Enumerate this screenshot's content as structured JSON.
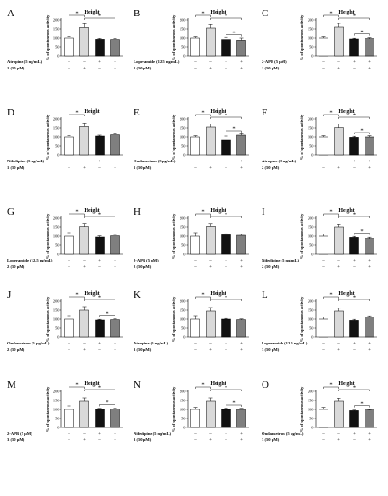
{
  "colors": {
    "bar_control": "#ffffff",
    "bar_compound": "#d9d9d9",
    "bar_antagonist": "#111111",
    "bar_combination": "#7f7f7f",
    "outline": "#000000"
  },
  "chart_data": [
    {
      "panel": "A",
      "type": "bar",
      "title": "Height",
      "ylabel": "% of spontaneous activity",
      "ylim": [
        0,
        200
      ],
      "yticks": [
        0,
        50,
        100,
        150,
        200
      ],
      "values": [
        100,
        158,
        93,
        92
      ],
      "errors": [
        7,
        20,
        5,
        6
      ],
      "rows": [
        {
          "label": "Atropine (5 ng/mL)",
          "marks": [
            "–",
            "–",
            "+",
            "+"
          ]
        },
        {
          "label": "1 (50 µM)",
          "marks": [
            "–",
            "+",
            "–",
            "+"
          ]
        }
      ],
      "annotations": [
        "*",
        "*"
      ]
    },
    {
      "panel": "B",
      "type": "bar",
      "title": "Height",
      "ylabel": "% of spontaneous activity",
      "ylim": [
        0,
        200
      ],
      "yticks": [
        0,
        50,
        100,
        150,
        200
      ],
      "values": [
        100,
        155,
        92,
        88
      ],
      "errors": [
        7,
        18,
        12,
        12
      ],
      "rows": [
        {
          "label": "Loperamide (12.5 ng/mL)",
          "marks": [
            "–",
            "–",
            "+",
            "+"
          ]
        },
        {
          "label": "1 (50 µM)",
          "marks": [
            "–",
            "+",
            "–",
            "+"
          ]
        }
      ],
      "annotations": [
        "*",
        "*",
        "*"
      ]
    },
    {
      "panel": "C",
      "type": "bar",
      "title": "Height",
      "ylabel": "% of spontaneous activity",
      "ylim": [
        0,
        200
      ],
      "yticks": [
        0,
        50,
        100,
        150,
        200
      ],
      "values": [
        100,
        160,
        95,
        97
      ],
      "errors": [
        7,
        20,
        4,
        5
      ],
      "rows": [
        {
          "label": "2-APB (5 µM)",
          "marks": [
            "–",
            "–",
            "+",
            "+"
          ]
        },
        {
          "label": "1 (50 µM)",
          "marks": [
            "–",
            "+",
            "–",
            "+"
          ]
        }
      ],
      "annotations": [
        "*",
        "*",
        "*"
      ]
    },
    {
      "panel": "D",
      "type": "bar",
      "title": "Height",
      "ylabel": "% of spontaneous activity",
      "ylim": [
        0,
        200
      ],
      "yticks": [
        0,
        50,
        100,
        150,
        200
      ],
      "values": [
        100,
        158,
        105,
        112
      ],
      "errors": [
        7,
        20,
        5,
        6
      ],
      "rows": [
        {
          "label": "Nifedipine (5 ng/mL)",
          "marks": [
            "–",
            "–",
            "+",
            "+"
          ]
        },
        {
          "label": "1 (50 µM)",
          "marks": [
            "–",
            "+",
            "–",
            "+"
          ]
        }
      ],
      "annotations": [
        "*"
      ]
    },
    {
      "panel": "E",
      "type": "bar",
      "title": "Height",
      "ylabel": "% of spontaneous activity",
      "ylim": [
        0,
        200
      ],
      "yticks": [
        0,
        50,
        100,
        150,
        200
      ],
      "values": [
        100,
        155,
        85,
        110
      ],
      "errors": [
        7,
        18,
        20,
        8
      ],
      "rows": [
        {
          "label": "Ondansetron (5 µg/mL)",
          "marks": [
            "–",
            "–",
            "+",
            "+"
          ]
        },
        {
          "label": "1 (50 µM)",
          "marks": [
            "–",
            "+",
            "–",
            "+"
          ]
        }
      ],
      "annotations": [
        "*",
        "*",
        "*"
      ]
    },
    {
      "panel": "F",
      "type": "bar",
      "title": "Height",
      "ylabel": "% of spontaneous activity",
      "ylim": [
        0,
        200
      ],
      "yticks": [
        0,
        50,
        100,
        150,
        200
      ],
      "values": [
        100,
        152,
        98,
        100
      ],
      "errors": [
        7,
        20,
        6,
        7
      ],
      "rows": [
        {
          "label": "Atropine (5 ng/mL)",
          "marks": [
            "–",
            "–",
            "+",
            "+"
          ]
        },
        {
          "label": "2 (50 µM)",
          "marks": [
            "–",
            "+",
            "–",
            "+"
          ]
        }
      ],
      "annotations": [
        "*",
        "*",
        "*"
      ]
    },
    {
      "panel": "G",
      "type": "bar",
      "title": "Height",
      "ylabel": "% of spontaneous activity",
      "ylim": [
        0,
        200
      ],
      "yticks": [
        0,
        50,
        100,
        150,
        200
      ],
      "values": [
        100,
        152,
        95,
        102
      ],
      "errors": [
        20,
        20,
        7,
        8
      ],
      "rows": [
        {
          "label": "Loperamide (12.5 ng/mL)",
          "marks": [
            "–",
            "–",
            "+",
            "+"
          ]
        },
        {
          "label": "2 (50 µM)",
          "marks": [
            "–",
            "+",
            "–",
            "+"
          ]
        }
      ],
      "annotations": [
        "*",
        "*"
      ]
    },
    {
      "panel": "H",
      "type": "bar",
      "title": "Height",
      "ylabel": "% of spontaneous activity",
      "ylim": [
        0,
        200
      ],
      "yticks": [
        0,
        50,
        100,
        150,
        200
      ],
      "values": [
        100,
        153,
        108,
        105
      ],
      "errors": [
        20,
        18,
        6,
        6
      ],
      "rows": [
        {
          "label": "2-APB (5 µM)",
          "marks": [
            "–",
            "–",
            "+",
            "+"
          ]
        },
        {
          "label": "2 (50 µM)",
          "marks": [
            "–",
            "+",
            "–",
            "+"
          ]
        }
      ],
      "annotations": [
        "*",
        "*"
      ]
    },
    {
      "panel": "I",
      "type": "bar",
      "title": "Height",
      "ylabel": "% of spontaneous activity",
      "ylim": [
        0,
        200
      ],
      "yticks": [
        0,
        50,
        100,
        150,
        200
      ],
      "values": [
        100,
        150,
        93,
        87
      ],
      "errors": [
        12,
        18,
        6,
        7
      ],
      "rows": [
        {
          "label": "Nifedipine (5 ng/mL)",
          "marks": [
            "–",
            "–",
            "+",
            "+"
          ]
        },
        {
          "label": "2 (50 µM)",
          "marks": [
            "–",
            "+",
            "–",
            "+"
          ]
        }
      ],
      "annotations": [
        "*",
        "*",
        "*"
      ]
    },
    {
      "panel": "J",
      "type": "bar",
      "title": "Height",
      "ylabel": "% of spontaneous activity",
      "ylim": [
        0,
        200
      ],
      "yticks": [
        0,
        50,
        100,
        150,
        200
      ],
      "values": [
        100,
        150,
        95,
        97
      ],
      "errors": [
        20,
        20,
        4,
        4
      ],
      "rows": [
        {
          "label": "Ondansetron (5 µg/mL)",
          "marks": [
            "–",
            "–",
            "+",
            "+"
          ]
        },
        {
          "label": "2 (50 µM)",
          "marks": [
            "–",
            "+",
            "–",
            "+"
          ]
        }
      ],
      "annotations": [
        "*",
        "*",
        "*"
      ]
    },
    {
      "panel": "K",
      "type": "bar",
      "title": "Height",
      "ylabel": "% of spontaneous activity",
      "ylim": [
        0,
        200
      ],
      "yticks": [
        0,
        50,
        100,
        150,
        200
      ],
      "values": [
        100,
        145,
        100,
        97
      ],
      "errors": [
        20,
        20,
        4,
        4
      ],
      "rows": [
        {
          "label": "Atropine (5 ng/mL)",
          "marks": [
            "–",
            "–",
            "+",
            "+"
          ]
        },
        {
          "label": "3 (50 µM)",
          "marks": [
            "–",
            "+",
            "–",
            "+"
          ]
        }
      ],
      "annotations": [
        "*",
        "*"
      ]
    },
    {
      "panel": "L",
      "type": "bar",
      "title": "Height",
      "ylabel": "% of spontaneous activity",
      "ylim": [
        0,
        200
      ],
      "yticks": [
        0,
        50,
        100,
        150,
        200
      ],
      "values": [
        100,
        145,
        93,
        113
      ],
      "errors": [
        12,
        16,
        6,
        6
      ],
      "rows": [
        {
          "label": "Loperamide (12.5 ng/mL)",
          "marks": [
            "–",
            "–",
            "+",
            "+"
          ]
        },
        {
          "label": "3 (50 µM)",
          "marks": [
            "–",
            "+",
            "–",
            "+"
          ]
        }
      ],
      "annotations": [
        "*",
        "*"
      ]
    },
    {
      "panel": "M",
      "type": "bar",
      "title": "Height",
      "ylabel": "% of spontaneous activity",
      "ylim": [
        0,
        200
      ],
      "yticks": [
        0,
        50,
        100,
        150,
        200
      ],
      "values": [
        100,
        145,
        103,
        103
      ],
      "errors": [
        20,
        20,
        3,
        3
      ],
      "rows": [
        {
          "label": "2-APB (5 µM)",
          "marks": [
            "–",
            "–",
            "+",
            "+"
          ]
        },
        {
          "label": "3 (50 µM)",
          "marks": [
            "–",
            "+",
            "–",
            "+"
          ]
        }
      ],
      "annotations": [
        "*",
        "*",
        "*"
      ]
    },
    {
      "panel": "N",
      "type": "bar",
      "title": "Height",
      "ylabel": "% of spontaneous activity",
      "ylim": [
        0,
        200
      ],
      "yticks": [
        0,
        50,
        100,
        150,
        200
      ],
      "values": [
        100,
        145,
        100,
        100
      ],
      "errors": [
        12,
        20,
        8,
        6
      ],
      "rows": [
        {
          "label": "Nifedipine (5 ng/mL)",
          "marks": [
            "–",
            "–",
            "+",
            "+"
          ]
        },
        {
          "label": "3 (50 µM)",
          "marks": [
            "–",
            "+",
            "–",
            "+"
          ]
        }
      ],
      "annotations": [
        "*",
        "*",
        "*"
      ]
    },
    {
      "panel": "O",
      "type": "bar",
      "title": "Height",
      "ylabel": "% of spontaneous activity",
      "ylim": [
        0,
        200
      ],
      "yticks": [
        0,
        50,
        100,
        150,
        200
      ],
      "values": [
        100,
        145,
        93,
        97
      ],
      "errors": [
        12,
        18,
        3,
        3
      ],
      "rows": [
        {
          "label": "Ondansetron (5 µg/mL)",
          "marks": [
            "–",
            "–",
            "+",
            "+"
          ]
        },
        {
          "label": "3 (50 µM)",
          "marks": [
            "–",
            "+",
            "–",
            "+"
          ]
        }
      ],
      "annotations": [
        "*",
        "*",
        "*"
      ]
    }
  ]
}
